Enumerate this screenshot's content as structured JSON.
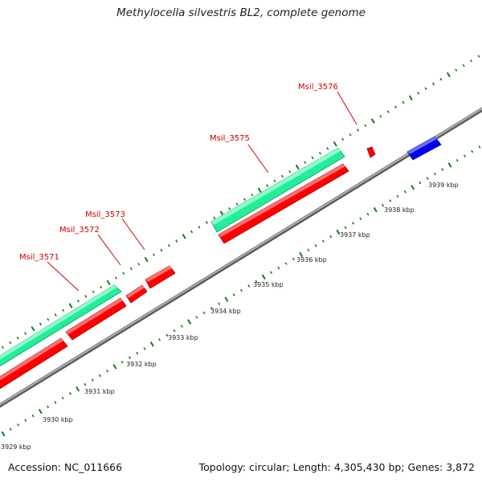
{
  "header": {
    "title": "Methylocella silvestris BL2, complete genome"
  },
  "footer": {
    "accession": "Accession: NC_011666",
    "summary": "Topology: circular; Length: 4,305,430 bp; Genes: 3,872"
  },
  "colors": {
    "backbone": "#8a8a8a",
    "tick": "#1a7a1a",
    "feature_red": "#ff0000",
    "feature_green": "#22ee99",
    "feature_blue": "#0000ee",
    "gene_label": "#cc0000"
  },
  "scale_labels": [
    "3929 kbp",
    "3930 kbp",
    "3931 kbp",
    "3932 kbp",
    "3933 kbp",
    "3934 kbp",
    "3935 kbp",
    "3936 kbp",
    "3937 kbp",
    "3938 kbp",
    "3939 kbp"
  ],
  "gene_labels": [
    "Msil_3571",
    "Msil_3572",
    "Msil_3573",
    "Msil_3575",
    "Msil_3576"
  ]
}
